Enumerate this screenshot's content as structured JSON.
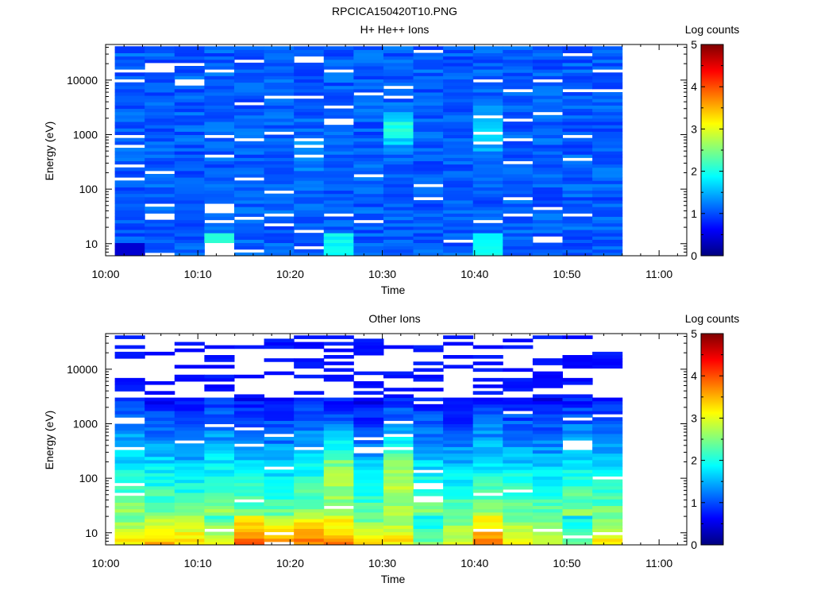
{
  "figure": {
    "title": "RPCICA150420T10.PNG"
  },
  "colormap": [
    "#00007f",
    "#0000ff",
    "#0080ff",
    "#00ffff",
    "#80ff80",
    "#ffff00",
    "#ff8000",
    "#ff0000",
    "#7f0000"
  ],
  "chart_data": [
    {
      "type": "heatmap",
      "title": "H+ He++ Ions",
      "xlabel": "Time",
      "ylabel": "Energy (eV)",
      "x_ticks": [
        "10:00",
        "10:10",
        "10:20",
        "10:30",
        "10:40",
        "10:50",
        "11:00"
      ],
      "x_range": [
        "10:00",
        "11:03"
      ],
      "data_range": [
        "10:01",
        "10:56"
      ],
      "y_scale": "log",
      "y_ticks": [
        10,
        100,
        1000,
        10000
      ],
      "y_range": [
        6,
        45000
      ],
      "colorbar": {
        "label": "Log counts",
        "range": [
          0,
          5
        ],
        "ticks": [
          0,
          1,
          2,
          3,
          4,
          5
        ]
      },
      "columns": 17,
      "rows": 64,
      "pattern": "blue background (~0.8-1.5 log counts) with sparse white empty bins; enhancements near 1-3 keV at 10:30-10:34 (~2.0) and 10:40-10:43 (~1.8); cyan low-energy bins near 10:14-10:18 (~2.0) and 10:40-10:43 (~1.9)",
      "seed": 11
    },
    {
      "type": "heatmap",
      "title": "Other Ions",
      "xlabel": "Time",
      "ylabel": "Energy (eV)",
      "x_ticks": [
        "10:00",
        "10:10",
        "10:20",
        "10:30",
        "10:40",
        "10:50",
        "11:00"
      ],
      "x_range": [
        "10:00",
        "11:03"
      ],
      "data_range": [
        "10:01",
        "10:56"
      ],
      "y_scale": "log",
      "y_ticks": [
        10,
        100,
        1000,
        10000
      ],
      "y_range": [
        6,
        45000
      ],
      "colorbar": {
        "label": "Log counts",
        "range": [
          0,
          5
        ],
        "ticks": [
          0,
          1,
          2,
          3,
          4,
          5
        ]
      },
      "columns": 17,
      "rows": 64,
      "pattern": "strong low-energy counts below ~20 eV (~3.0-3.9 log counts, orange at 10:14-10:28 and 10:40-10:43); fading through cyan/blue up to ~3 keV; sparse dark-blue lines with many empty bins above ~3 keV",
      "seed": 29
    }
  ]
}
